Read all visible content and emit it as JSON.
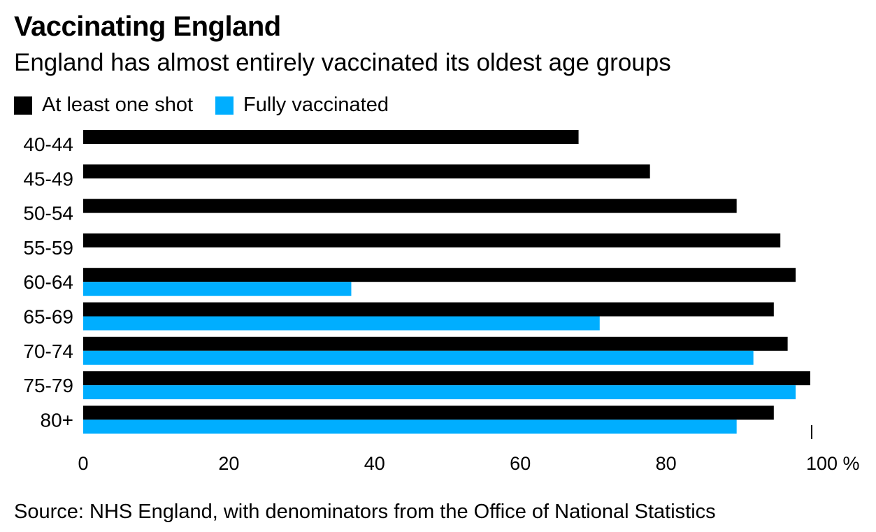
{
  "title": "Vaccinating England",
  "subtitle": "England has almost entirely vaccinated its oldest age groups",
  "source": "Source: NHS England, with denominators from the Office of National Statistics",
  "colors": {
    "one_shot": "#000000",
    "fully": "#00aeff"
  },
  "chart_data": {
    "type": "bar",
    "orientation": "horizontal",
    "categories": [
      "40-44",
      "45-49",
      "50-54",
      "55-59",
      "60-64",
      "65-69",
      "70-74",
      "75-79",
      "80+"
    ],
    "series": [
      {
        "name": "At least one shot",
        "color": "#000000",
        "values": [
          68,
          77.8,
          89.7,
          95.7,
          97.8,
          94.8,
          96.7,
          99.8,
          94.8
        ]
      },
      {
        "name": "Fully vaccinated",
        "color": "#00aeff",
        "values": [
          null,
          null,
          null,
          null,
          36.8,
          70.9,
          92,
          97.8,
          89.7
        ]
      }
    ],
    "xlim": [
      0,
      100
    ],
    "xticks": [
      "0",
      "20",
      "40",
      "60",
      "80",
      "100 %"
    ],
    "xlabel": "",
    "ylabel": "",
    "legend": "top-left"
  }
}
